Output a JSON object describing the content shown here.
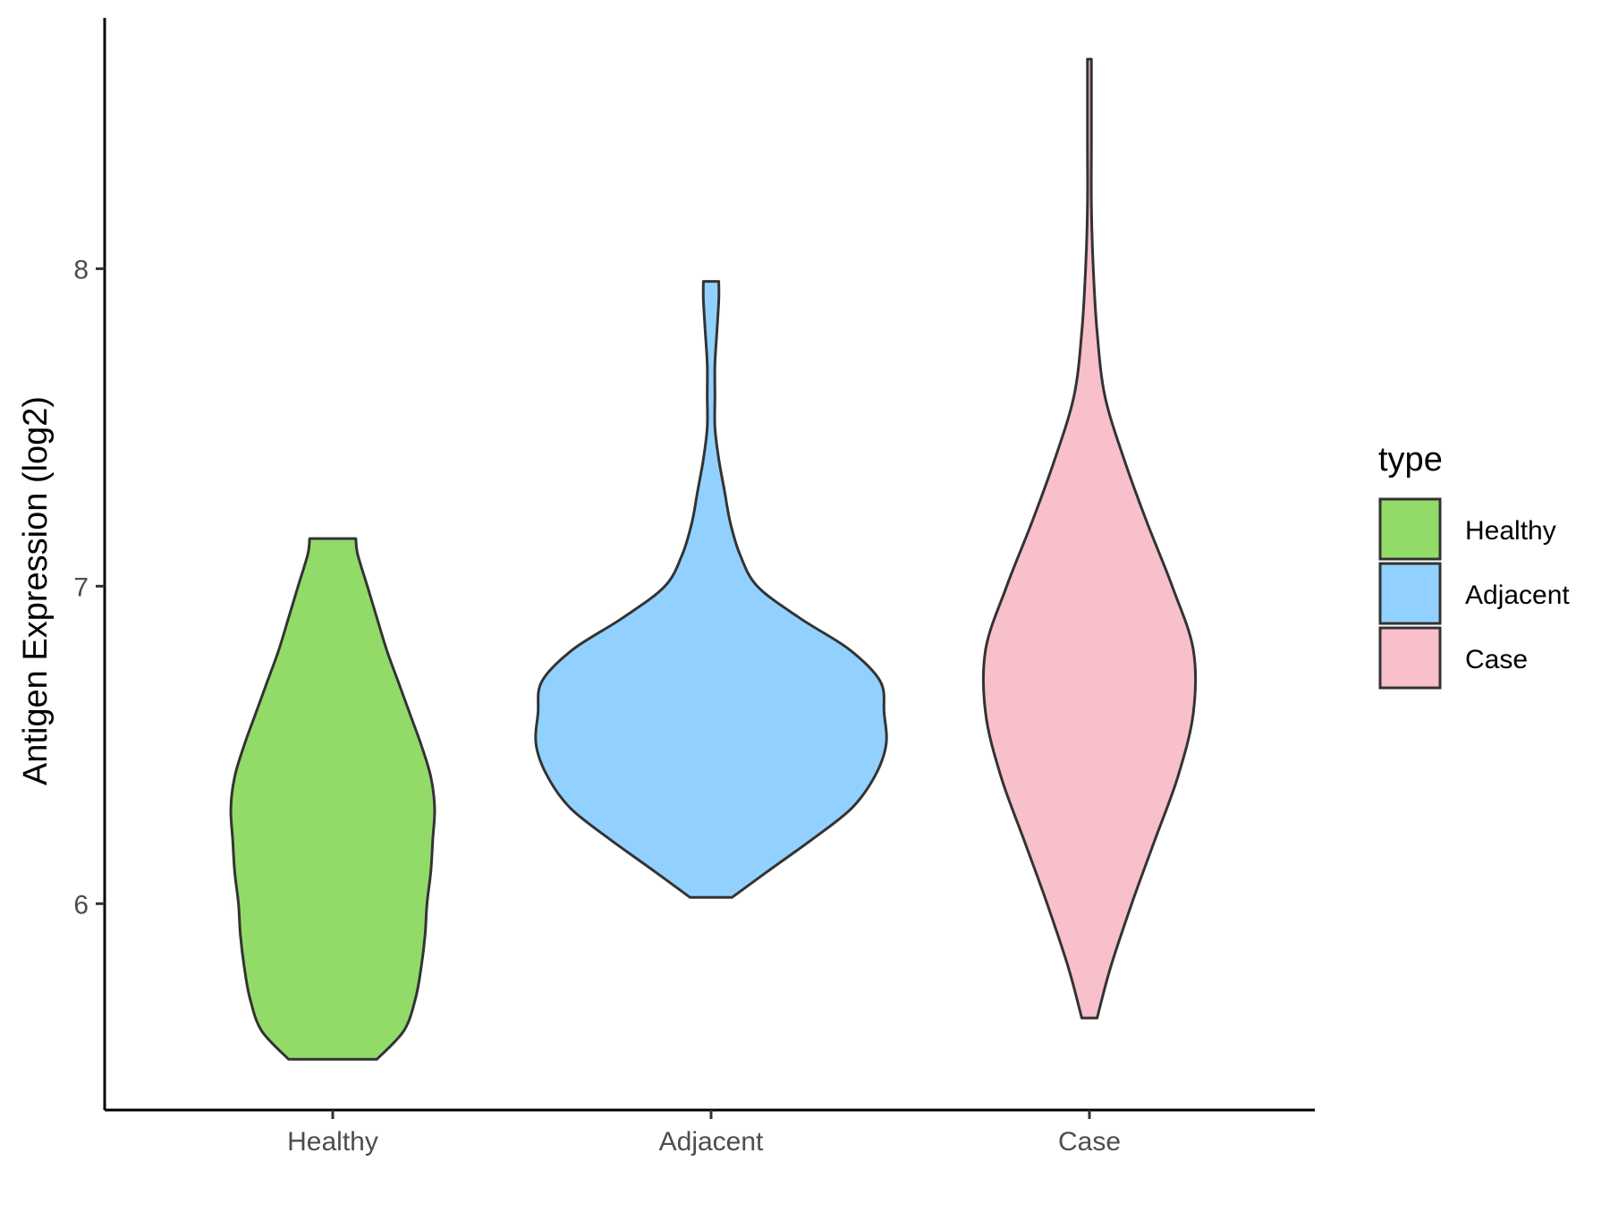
{
  "chart_data": {
    "type": "violin",
    "xlabel": "",
    "ylabel": "Antigen Expression (log2)",
    "categories": [
      "Healthy",
      "Adjacent",
      "Case"
    ],
    "y_ticks": [
      6,
      7,
      8
    ],
    "y_tick_labels": [
      "6",
      "7",
      "8"
    ],
    "ylim": [
      5.35,
      8.79
    ],
    "grid": false,
    "legend": {
      "title": "type",
      "position": "right",
      "entries": [
        "Healthy",
        "Adjacent",
        "Case"
      ]
    },
    "colors": {
      "Healthy": "#93DB69",
      "Adjacent": "#92D1FF",
      "Case": "#F7C0CB",
      "outline": "#333333"
    },
    "series": [
      {
        "name": "Healthy",
        "min": 5.51,
        "max": 7.15,
        "profile": [
          [
            5.51,
            0.23
          ],
          [
            5.6,
            0.37
          ],
          [
            5.7,
            0.43
          ],
          [
            5.8,
            0.46
          ],
          [
            5.9,
            0.48
          ],
          [
            6.0,
            0.49
          ],
          [
            6.1,
            0.51
          ],
          [
            6.2,
            0.52
          ],
          [
            6.3,
            0.53
          ],
          [
            6.4,
            0.51
          ],
          [
            6.5,
            0.46
          ],
          [
            6.6,
            0.4
          ],
          [
            6.7,
            0.34
          ],
          [
            6.8,
            0.28
          ],
          [
            6.9,
            0.23
          ],
          [
            7.0,
            0.18
          ],
          [
            7.1,
            0.13
          ],
          [
            7.15,
            0.12
          ]
        ]
      },
      {
        "name": "Adjacent",
        "min": 6.02,
        "max": 7.96,
        "profile": [
          [
            6.02,
            0.11
          ],
          [
            6.1,
            0.29
          ],
          [
            6.2,
            0.52
          ],
          [
            6.3,
            0.73
          ],
          [
            6.4,
            0.85
          ],
          [
            6.5,
            0.91
          ],
          [
            6.6,
            0.9
          ],
          [
            6.7,
            0.88
          ],
          [
            6.8,
            0.72
          ],
          [
            6.9,
            0.46
          ],
          [
            7.0,
            0.24
          ],
          [
            7.1,
            0.15
          ],
          [
            7.2,
            0.1
          ],
          [
            7.3,
            0.07
          ],
          [
            7.4,
            0.04
          ],
          [
            7.5,
            0.02
          ],
          [
            7.6,
            0.02
          ],
          [
            7.7,
            0.02
          ],
          [
            7.8,
            0.03
          ],
          [
            7.9,
            0.04
          ],
          [
            7.96,
            0.04
          ]
        ]
      },
      {
        "name": "Case",
        "min": 5.64,
        "max": 8.66,
        "profile": [
          [
            5.64,
            0.04
          ],
          [
            5.8,
            0.11
          ],
          [
            6.0,
            0.22
          ],
          [
            6.2,
            0.34
          ],
          [
            6.4,
            0.46
          ],
          [
            6.6,
            0.54
          ],
          [
            6.8,
            0.54
          ],
          [
            7.0,
            0.43
          ],
          [
            7.2,
            0.3
          ],
          [
            7.4,
            0.18
          ],
          [
            7.6,
            0.08
          ],
          [
            7.8,
            0.04
          ],
          [
            8.0,
            0.02
          ],
          [
            8.2,
            0.01
          ],
          [
            8.4,
            0.01
          ],
          [
            8.66,
            0.01
          ]
        ]
      }
    ]
  }
}
